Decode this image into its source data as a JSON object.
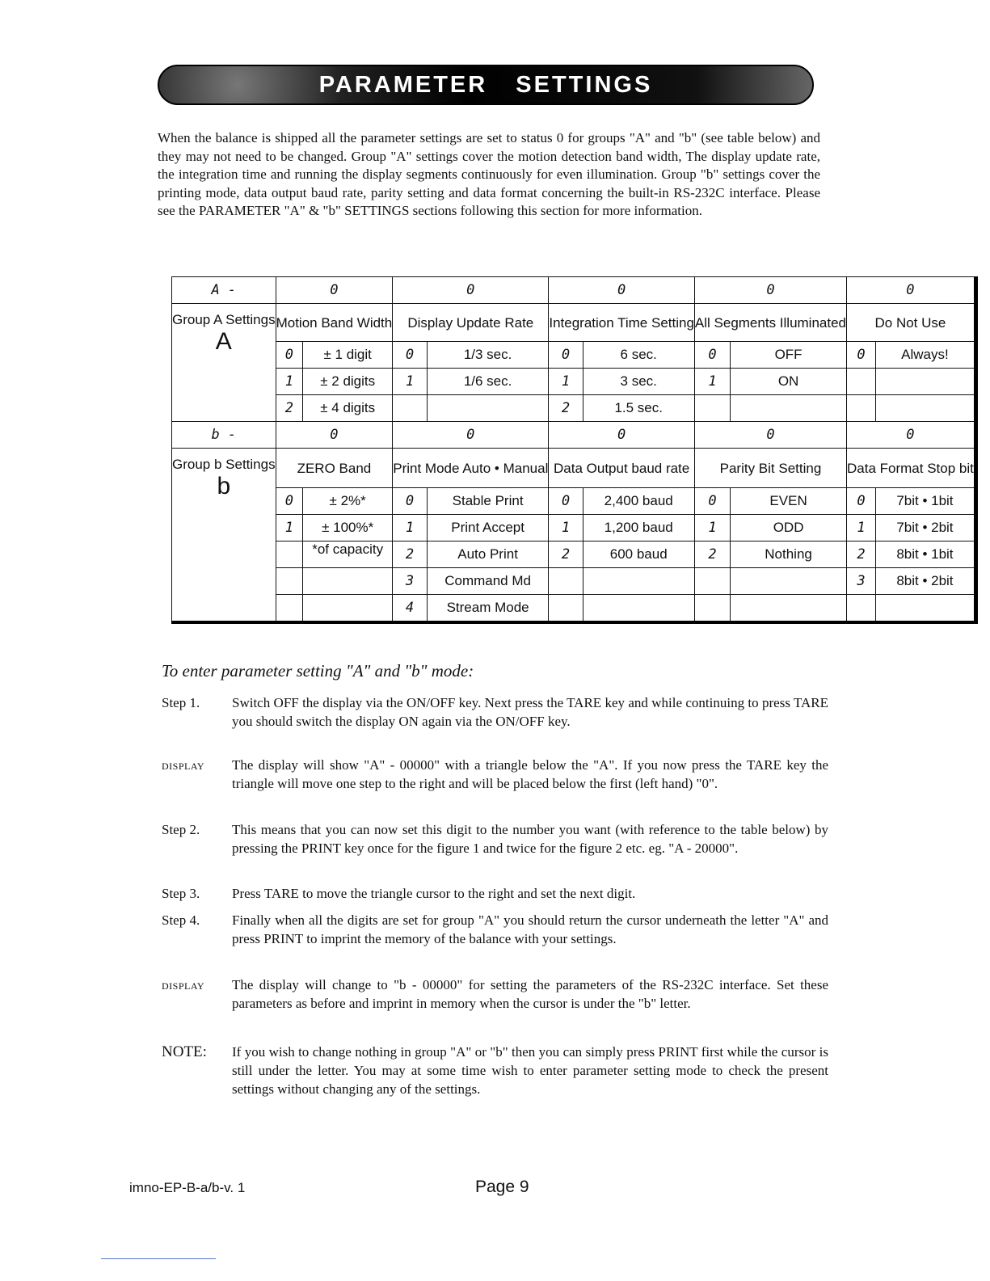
{
  "banner": {
    "title": "PARAMETER SETTINGS"
  },
  "intro": "When the balance is shipped all the parameter settings are set to status 0 for groups \"A\" and \"b\" (see table below) and they may not need to be changed. Group \"A\" settings cover the motion detection band width, The display update rate, the integration time and running the display segments continuously for even illumination. Group \"b\" settings cover the printing mode, data output baud rate, parity setting and data format concerning the built-in RS-232C interface. Please see the PARAMETER \"A\" & \"b\" SETTINGS sections following this section for more information.",
  "groupA": {
    "code": "A -",
    "digits": [
      "0",
      "0",
      "0",
      "0",
      "0"
    ],
    "label": "Group A Settings",
    "letter": "A",
    "titles": [
      "Motion Band Width",
      "Display Update Rate",
      "Integration Time Setting",
      "All Segments Illuminated",
      "Do Not Use"
    ],
    "rows": [
      [
        [
          "0",
          "± 1 digit"
        ],
        [
          "0",
          "1/3 sec."
        ],
        [
          "0",
          "6 sec."
        ],
        [
          "0",
          "OFF"
        ],
        [
          "0",
          "Always!"
        ]
      ],
      [
        [
          "1",
          "± 2 digits"
        ],
        [
          "1",
          "1/6 sec."
        ],
        [
          "1",
          "3 sec."
        ],
        [
          "1",
          "ON"
        ],
        [
          "",
          ""
        ]
      ],
      [
        [
          "2",
          "± 4 digits"
        ],
        [
          "",
          ""
        ],
        [
          "2",
          "1.5 sec."
        ],
        [
          "",
          ""
        ],
        [
          "",
          ""
        ]
      ]
    ]
  },
  "groupB": {
    "code": "b -",
    "digits": [
      "0",
      "0",
      "0",
      "0",
      "0"
    ],
    "label": "Group b Settings",
    "letter": "b",
    "titles": [
      "ZERO Band",
      "Print Mode Auto • Manual",
      "Data Output baud rate",
      "Parity Bit Setting",
      "Data Format Stop bit"
    ],
    "rows": [
      [
        [
          "0",
          "± 2%*"
        ],
        [
          "0",
          "Stable Print"
        ],
        [
          "0",
          "2,400 baud"
        ],
        [
          "0",
          "EVEN"
        ],
        [
          "0",
          "7bit • 1bit"
        ]
      ],
      [
        [
          "1",
          "± 100%*"
        ],
        [
          "1",
          "Print Accept"
        ],
        [
          "1",
          "1,200 baud"
        ],
        [
          "1",
          "ODD"
        ],
        [
          "1",
          "7bit • 2bit"
        ]
      ],
      [
        [
          "",
          "*of capacity"
        ],
        [
          "2",
          "Auto Print"
        ],
        [
          "2",
          "600 baud"
        ],
        [
          "2",
          "Nothing"
        ],
        [
          "2",
          "8bit • 1bit"
        ]
      ],
      [
        [
          "",
          ""
        ],
        [
          "3",
          "Command Md"
        ],
        [
          "",
          ""
        ],
        [
          "",
          ""
        ],
        [
          "3",
          "8bit • 2bit"
        ]
      ],
      [
        [
          "",
          ""
        ],
        [
          "4",
          "Stream Mode"
        ],
        [
          "",
          ""
        ],
        [
          "",
          ""
        ],
        [
          "",
          ""
        ]
      ]
    ]
  },
  "procedure": {
    "heading": "To enter parameter setting \"A\" and \"b\" mode:",
    "steps": [
      {
        "label": "Step 1.",
        "text": "Switch OFF the display via the ON/OFF key. Next press the TARE key and while continuing to press TARE you should switch the display ON again via the ON/OFF key."
      },
      {
        "label": "DISPLAY",
        "text": "The display will show \"A\" - 00000\" with a triangle below the \"A\". If you now press the TARE key the triangle will move one step to the right and will be placed below the first (left hand) \"0\"."
      },
      {
        "label": "Step 2.",
        "text": "This means that you can now set this digit to the number you want (with reference to the table below) by pressing the PRINT key once for the figure 1 and twice for the figure 2 etc. eg. \"A - 20000\"."
      },
      {
        "label": "Step 3.",
        "text": "Press TARE to move the triangle cursor to the right and set the next digit."
      },
      {
        "label": "Step 4.",
        "text": "Finally when all the digits are set for group \"A\" you should return the cursor underneath the letter \"A\" and press PRINT to imprint the memory of the balance with your settings."
      },
      {
        "label": "DISPLAY",
        "text": "The display will change to \"b - 00000\" for setting the parameters of the RS-232C interface. Set these parameters as before and imprint in memory when the cursor is under the \"b\" letter."
      },
      {
        "label": "NOTE:",
        "text": "If you wish to change nothing in group \"A\" or \"b\" then you can simply press PRINT first while the cursor is still under the letter. You may at some time wish to enter parameter setting mode to check the present settings without changing any of the settings."
      }
    ]
  },
  "footer": {
    "doc_id": "imno-EP-B-a/b-v. 1",
    "page": "Page 9"
  }
}
